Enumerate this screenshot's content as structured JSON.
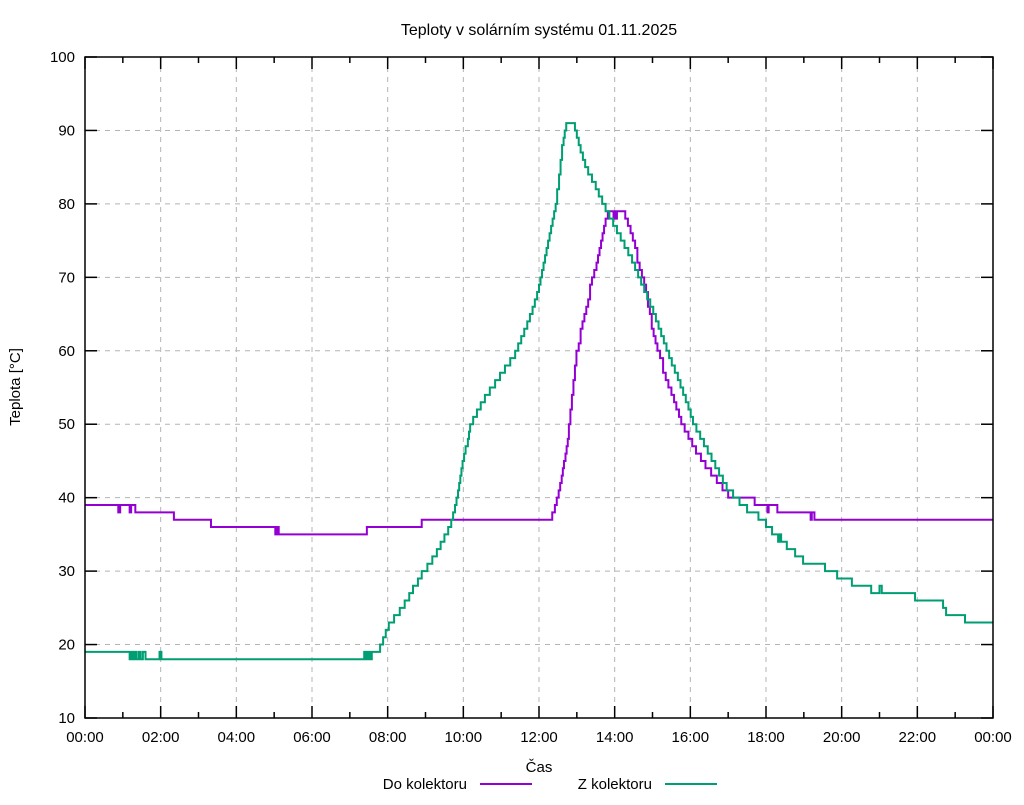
{
  "title": "Teploty v solárním systému 01.11.2025",
  "axes": {
    "x": {
      "label": "Čas",
      "tick_labels": [
        "00:00",
        "02:00",
        "04:00",
        "06:00",
        "08:00",
        "10:00",
        "12:00",
        "14:00",
        "16:00",
        "18:00",
        "20:00",
        "22:00",
        "00:00"
      ],
      "tick_hours": [
        0,
        2,
        4,
        6,
        8,
        10,
        12,
        14,
        16,
        18,
        20,
        22,
        24
      ],
      "minor_tick_hours": [
        1,
        3,
        5,
        7,
        9,
        11,
        13,
        15,
        17,
        19,
        21,
        23
      ]
    },
    "y": {
      "label": "Teplota [°C]",
      "tick_values": [
        10,
        20,
        30,
        40,
        50,
        60,
        70,
        80,
        90,
        100
      ],
      "min": 10,
      "max": 100
    }
  },
  "legend": [
    {
      "label": "Do kolektoru",
      "color": "#9400d3"
    },
    {
      "label": "Z kolektoru",
      "color": "#009e73"
    }
  ],
  "colors": {
    "series1": "#9400d3",
    "series2": "#009e73",
    "grid": "#b4b4b4",
    "border": "#000000"
  },
  "chart_data": {
    "type": "line",
    "style": "steps-post",
    "title": "Teploty v solárním systému 01.11.2025",
    "xlabel": "Čas",
    "ylabel": "Teplota [°C]",
    "xlim_hours": [
      0,
      24
    ],
    "ylim": [
      10,
      100
    ],
    "grid": true,
    "legend_position": "bottom-center",
    "series": [
      {
        "name": "Do kolektoru",
        "color": "#9400d3",
        "points": [
          [
            0.0,
            39
          ],
          [
            0.88,
            38
          ],
          [
            0.93,
            39
          ],
          [
            1.18,
            38
          ],
          [
            1.22,
            39
          ],
          [
            1.33,
            38
          ],
          [
            2.35,
            37
          ],
          [
            3.33,
            36
          ],
          [
            5.03,
            35
          ],
          [
            5.07,
            36
          ],
          [
            5.12,
            35
          ],
          [
            7.45,
            36
          ],
          [
            8.9,
            37
          ],
          [
            12.35,
            38
          ],
          [
            12.42,
            39
          ],
          [
            12.47,
            40
          ],
          [
            12.52,
            41
          ],
          [
            12.56,
            42
          ],
          [
            12.6,
            43
          ],
          [
            12.63,
            44
          ],
          [
            12.66,
            45
          ],
          [
            12.7,
            46
          ],
          [
            12.73,
            47
          ],
          [
            12.76,
            48
          ],
          [
            12.79,
            50
          ],
          [
            12.83,
            52
          ],
          [
            12.87,
            54
          ],
          [
            12.91,
            56
          ],
          [
            12.95,
            58
          ],
          [
            12.99,
            60
          ],
          [
            13.05,
            61
          ],
          [
            13.1,
            63
          ],
          [
            13.15,
            64
          ],
          [
            13.2,
            65
          ],
          [
            13.25,
            66
          ],
          [
            13.3,
            67
          ],
          [
            13.35,
            69
          ],
          [
            13.4,
            70
          ],
          [
            13.46,
            71
          ],
          [
            13.52,
            72
          ],
          [
            13.56,
            73
          ],
          [
            13.6,
            74
          ],
          [
            13.64,
            75
          ],
          [
            13.68,
            76
          ],
          [
            13.72,
            77
          ],
          [
            13.76,
            78
          ],
          [
            13.82,
            79
          ],
          [
            13.97,
            78
          ],
          [
            14.0,
            79
          ],
          [
            14.03,
            78
          ],
          [
            14.06,
            79
          ],
          [
            14.28,
            78
          ],
          [
            14.35,
            77
          ],
          [
            14.42,
            76
          ],
          [
            14.48,
            75
          ],
          [
            14.54,
            74
          ],
          [
            14.6,
            72
          ],
          [
            14.66,
            71
          ],
          [
            14.72,
            70
          ],
          [
            14.78,
            69
          ],
          [
            14.83,
            68
          ],
          [
            14.88,
            66
          ],
          [
            14.93,
            65
          ],
          [
            14.98,
            63
          ],
          [
            15.03,
            62
          ],
          [
            15.08,
            61
          ],
          [
            15.13,
            60
          ],
          [
            15.2,
            59
          ],
          [
            15.28,
            57
          ],
          [
            15.35,
            56
          ],
          [
            15.42,
            55
          ],
          [
            15.5,
            54
          ],
          [
            15.57,
            53
          ],
          [
            15.63,
            52
          ],
          [
            15.7,
            51
          ],
          [
            15.76,
            50
          ],
          [
            15.85,
            49
          ],
          [
            15.95,
            48
          ],
          [
            16.05,
            47
          ],
          [
            16.15,
            46
          ],
          [
            16.28,
            45
          ],
          [
            16.4,
            44
          ],
          [
            16.55,
            43
          ],
          [
            16.7,
            42
          ],
          [
            16.85,
            41
          ],
          [
            17.0,
            40
          ],
          [
            17.7,
            39
          ],
          [
            18.04,
            38
          ],
          [
            18.07,
            39
          ],
          [
            18.3,
            38
          ],
          [
            19.18,
            37
          ],
          [
            19.21,
            38
          ],
          [
            19.28,
            37
          ],
          [
            24.0,
            37
          ]
        ]
      },
      {
        "name": "Z kolektoru",
        "color": "#009e73",
        "points": [
          [
            0.0,
            19
          ],
          [
            1.18,
            18
          ],
          [
            1.22,
            19
          ],
          [
            1.26,
            18
          ],
          [
            1.31,
            19
          ],
          [
            1.36,
            18
          ],
          [
            1.42,
            19
          ],
          [
            1.47,
            18
          ],
          [
            1.53,
            19
          ],
          [
            1.6,
            18
          ],
          [
            1.97,
            19
          ],
          [
            2.02,
            18
          ],
          [
            7.38,
            19
          ],
          [
            7.43,
            18
          ],
          [
            7.48,
            19
          ],
          [
            7.53,
            18
          ],
          [
            7.58,
            19
          ],
          [
            7.8,
            20
          ],
          [
            7.88,
            21
          ],
          [
            7.95,
            22
          ],
          [
            8.03,
            23
          ],
          [
            8.17,
            24
          ],
          [
            8.32,
            25
          ],
          [
            8.45,
            26
          ],
          [
            8.57,
            27
          ],
          [
            8.67,
            28
          ],
          [
            8.8,
            29
          ],
          [
            8.9,
            30
          ],
          [
            9.05,
            31
          ],
          [
            9.18,
            32
          ],
          [
            9.3,
            33
          ],
          [
            9.4,
            34
          ],
          [
            9.5,
            35
          ],
          [
            9.6,
            36
          ],
          [
            9.68,
            37
          ],
          [
            9.73,
            38
          ],
          [
            9.78,
            39
          ],
          [
            9.82,
            40
          ],
          [
            9.86,
            41
          ],
          [
            9.89,
            42
          ],
          [
            9.92,
            43
          ],
          [
            9.95,
            44
          ],
          [
            9.98,
            45
          ],
          [
            10.02,
            46
          ],
          [
            10.06,
            47
          ],
          [
            10.12,
            48
          ],
          [
            10.15,
            49
          ],
          [
            10.18,
            50
          ],
          [
            10.26,
            51
          ],
          [
            10.36,
            52
          ],
          [
            10.46,
            53
          ],
          [
            10.57,
            54
          ],
          [
            10.7,
            55
          ],
          [
            10.84,
            56
          ],
          [
            10.97,
            57
          ],
          [
            11.1,
            58
          ],
          [
            11.24,
            59
          ],
          [
            11.37,
            60
          ],
          [
            11.45,
            61
          ],
          [
            11.53,
            62
          ],
          [
            11.61,
            63
          ],
          [
            11.69,
            64
          ],
          [
            11.76,
            65
          ],
          [
            11.83,
            66
          ],
          [
            11.89,
            67
          ],
          [
            11.95,
            68
          ],
          [
            12.0,
            69
          ],
          [
            12.04,
            70
          ],
          [
            12.08,
            71
          ],
          [
            12.12,
            72
          ],
          [
            12.16,
            73
          ],
          [
            12.2,
            74
          ],
          [
            12.24,
            75
          ],
          [
            12.28,
            76
          ],
          [
            12.32,
            77
          ],
          [
            12.36,
            78
          ],
          [
            12.4,
            79
          ],
          [
            12.44,
            80
          ],
          [
            12.48,
            82
          ],
          [
            12.53,
            84
          ],
          [
            12.57,
            86
          ],
          [
            12.61,
            88
          ],
          [
            12.65,
            89
          ],
          [
            12.68,
            90
          ],
          [
            12.72,
            91
          ],
          [
            12.95,
            90
          ],
          [
            13.0,
            89
          ],
          [
            13.05,
            88
          ],
          [
            13.1,
            87
          ],
          [
            13.16,
            86
          ],
          [
            13.22,
            85
          ],
          [
            13.3,
            84
          ],
          [
            13.4,
            83
          ],
          [
            13.5,
            82
          ],
          [
            13.58,
            81
          ],
          [
            13.67,
            80
          ],
          [
            13.76,
            79
          ],
          [
            13.86,
            78
          ],
          [
            13.96,
            77
          ],
          [
            14.06,
            76
          ],
          [
            14.16,
            75
          ],
          [
            14.26,
            74
          ],
          [
            14.36,
            73
          ],
          [
            14.46,
            72
          ],
          [
            14.54,
            71
          ],
          [
            14.62,
            70
          ],
          [
            14.7,
            69
          ],
          [
            14.78,
            68
          ],
          [
            14.86,
            67
          ],
          [
            14.94,
            66
          ],
          [
            15.02,
            65
          ],
          [
            15.09,
            64
          ],
          [
            15.16,
            63
          ],
          [
            15.23,
            62
          ],
          [
            15.3,
            61
          ],
          [
            15.37,
            60
          ],
          [
            15.44,
            59
          ],
          [
            15.51,
            58
          ],
          [
            15.59,
            57
          ],
          [
            15.67,
            56
          ],
          [
            15.74,
            55
          ],
          [
            15.81,
            54
          ],
          [
            15.88,
            53
          ],
          [
            15.95,
            52
          ],
          [
            16.01,
            51
          ],
          [
            16.07,
            50
          ],
          [
            16.16,
            49
          ],
          [
            16.26,
            48
          ],
          [
            16.36,
            47
          ],
          [
            16.46,
            46
          ],
          [
            16.56,
            45
          ],
          [
            16.66,
            44
          ],
          [
            16.76,
            43
          ],
          [
            16.86,
            42
          ],
          [
            16.96,
            41
          ],
          [
            17.13,
            40
          ],
          [
            17.3,
            39
          ],
          [
            17.5,
            38
          ],
          [
            17.8,
            37
          ],
          [
            18.0,
            36
          ],
          [
            18.16,
            35
          ],
          [
            18.32,
            34
          ],
          [
            18.36,
            35
          ],
          [
            18.4,
            34
          ],
          [
            18.55,
            33
          ],
          [
            18.77,
            32
          ],
          [
            18.98,
            31
          ],
          [
            19.56,
            30
          ],
          [
            19.88,
            29
          ],
          [
            20.27,
            28
          ],
          [
            20.78,
            27
          ],
          [
            21.0,
            28
          ],
          [
            21.06,
            27
          ],
          [
            21.94,
            26
          ],
          [
            22.68,
            25
          ],
          [
            22.76,
            24
          ],
          [
            23.26,
            23
          ],
          [
            24.0,
            23
          ]
        ]
      }
    ]
  }
}
